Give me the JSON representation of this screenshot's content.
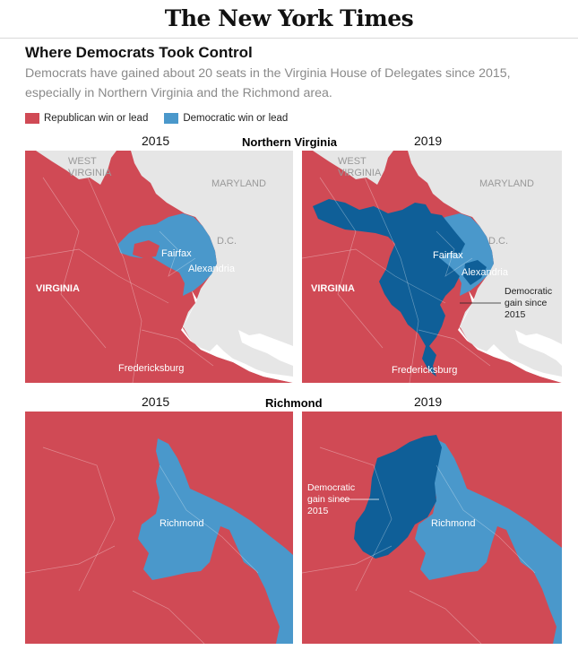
{
  "masthead": "The New York Times",
  "headline": "Where Democrats Took Control",
  "subhead": "Democrats have gained about 20 seats in the Virginia House of Delegates since 2015, especially in Northern Virginia and the Richmond area.",
  "legend": [
    {
      "label": "Republican win or lead",
      "color": "#d04a55"
    },
    {
      "label": "Democratic win or lead",
      "color": "#4a98cb"
    }
  ],
  "colors": {
    "republican": "#d04a55",
    "democratic": "#4a98cb",
    "democratic_gain": "#0f5f98",
    "other_state": "#e6e6e6",
    "water": "#ffffff"
  },
  "regions": [
    {
      "name": "Northern Virginia",
      "maps": [
        {
          "year": "2015",
          "labels": {
            "west_virginia": "WEST VIRGINIA",
            "maryland": "MARYLAND",
            "dc": "D.C.",
            "fairfax": "Fairfax",
            "alexandria": "Alexandria",
            "virginia": "VIRGINIA",
            "fredericksburg": "Fredericksburg"
          }
        },
        {
          "year": "2019",
          "labels": {
            "west_virginia": "WEST VIRGINIA",
            "maryland": "MARYLAND",
            "dc": "D.C.",
            "fairfax": "Fairfax",
            "alexandria": "Alexandria",
            "virginia": "VIRGINIA",
            "fredericksburg": "Fredericksburg",
            "annotation": "Democratic gain since 2015"
          }
        }
      ]
    },
    {
      "name": "Richmond",
      "maps": [
        {
          "year": "2015",
          "labels": {
            "city": "Richmond"
          }
        },
        {
          "year": "2019",
          "labels": {
            "city": "Richmond",
            "annotation": "Democratic gain since 2015"
          }
        }
      ]
    }
  ]
}
